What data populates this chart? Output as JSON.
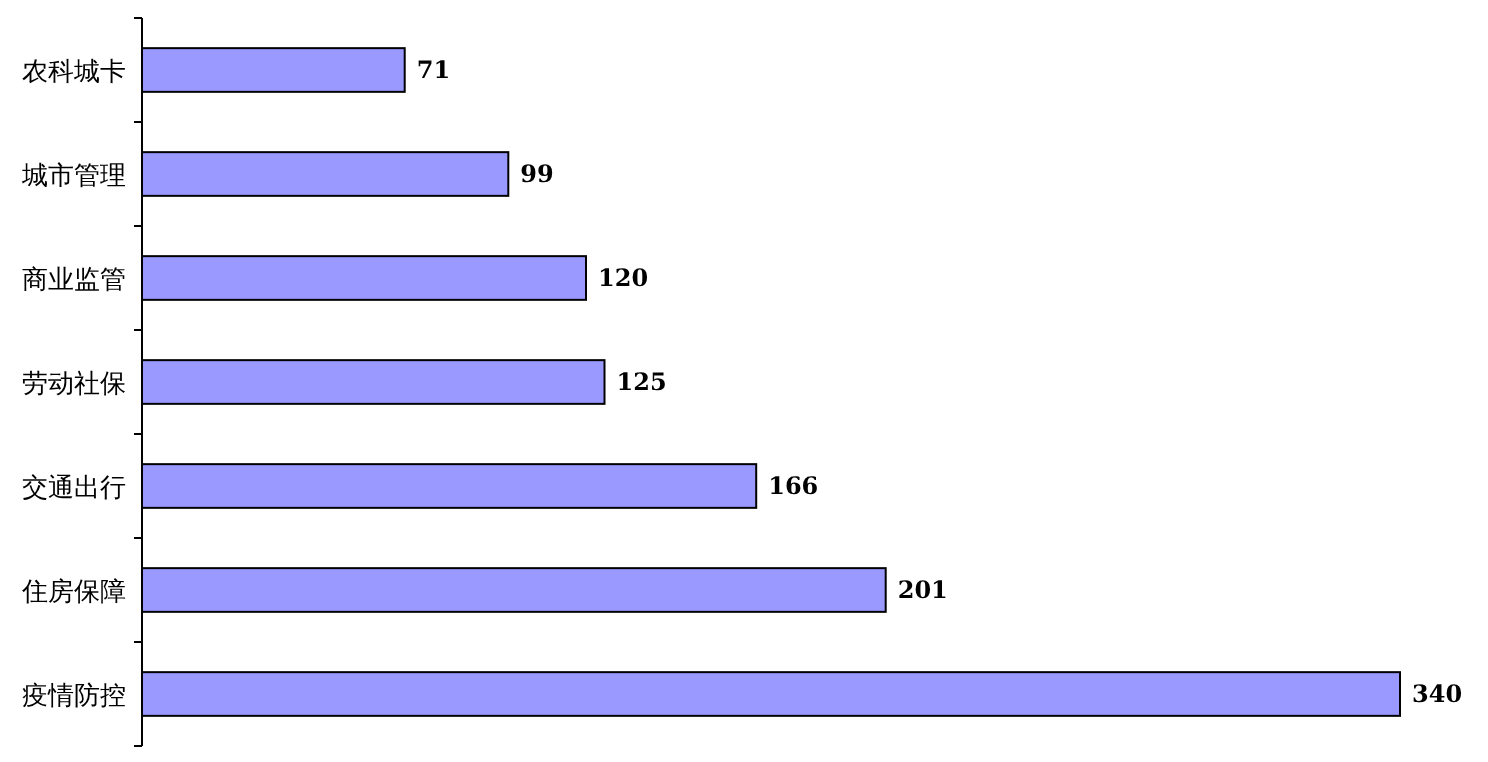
{
  "chart_data": {
    "type": "bar",
    "orientation": "horizontal",
    "categories": [
      "农科城卡",
      "城市管理",
      "商业监管",
      "劳动社保",
      "交通出行",
      "住房保障",
      "疫情防控"
    ],
    "values": [
      71,
      99,
      120,
      125,
      166,
      201,
      340
    ],
    "color": "#9999ff",
    "data_labels": true
  }
}
